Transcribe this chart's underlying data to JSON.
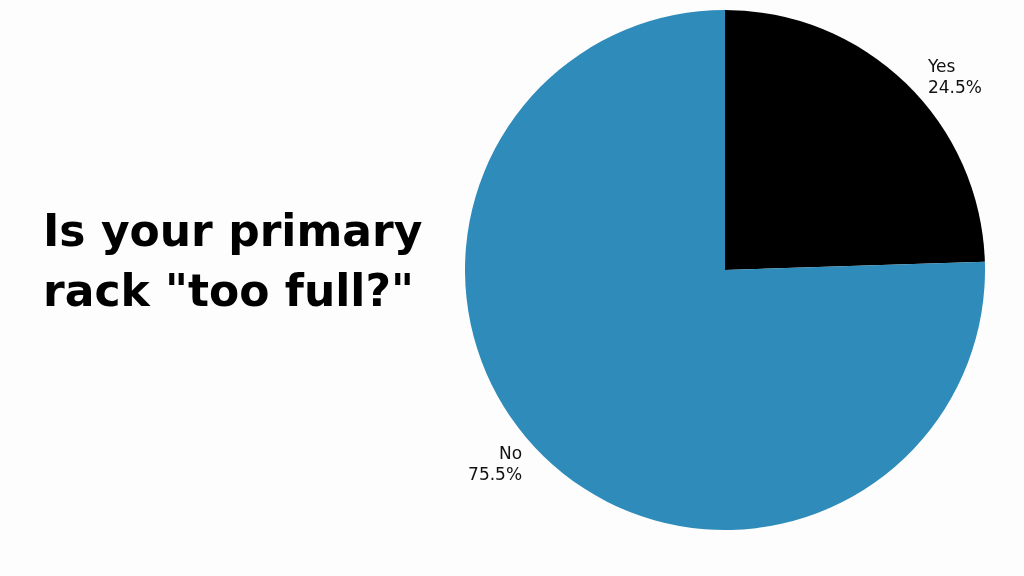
{
  "chart_data": {
    "type": "pie",
    "title": "Is your primary rack \"too full?\"",
    "categories": [
      "Yes",
      "No"
    ],
    "values": [
      24.5,
      75.5
    ],
    "value_labels": [
      "24.5%",
      "75.5%"
    ],
    "colors": [
      "#000000",
      "#2e8bba"
    ],
    "legend": false
  }
}
